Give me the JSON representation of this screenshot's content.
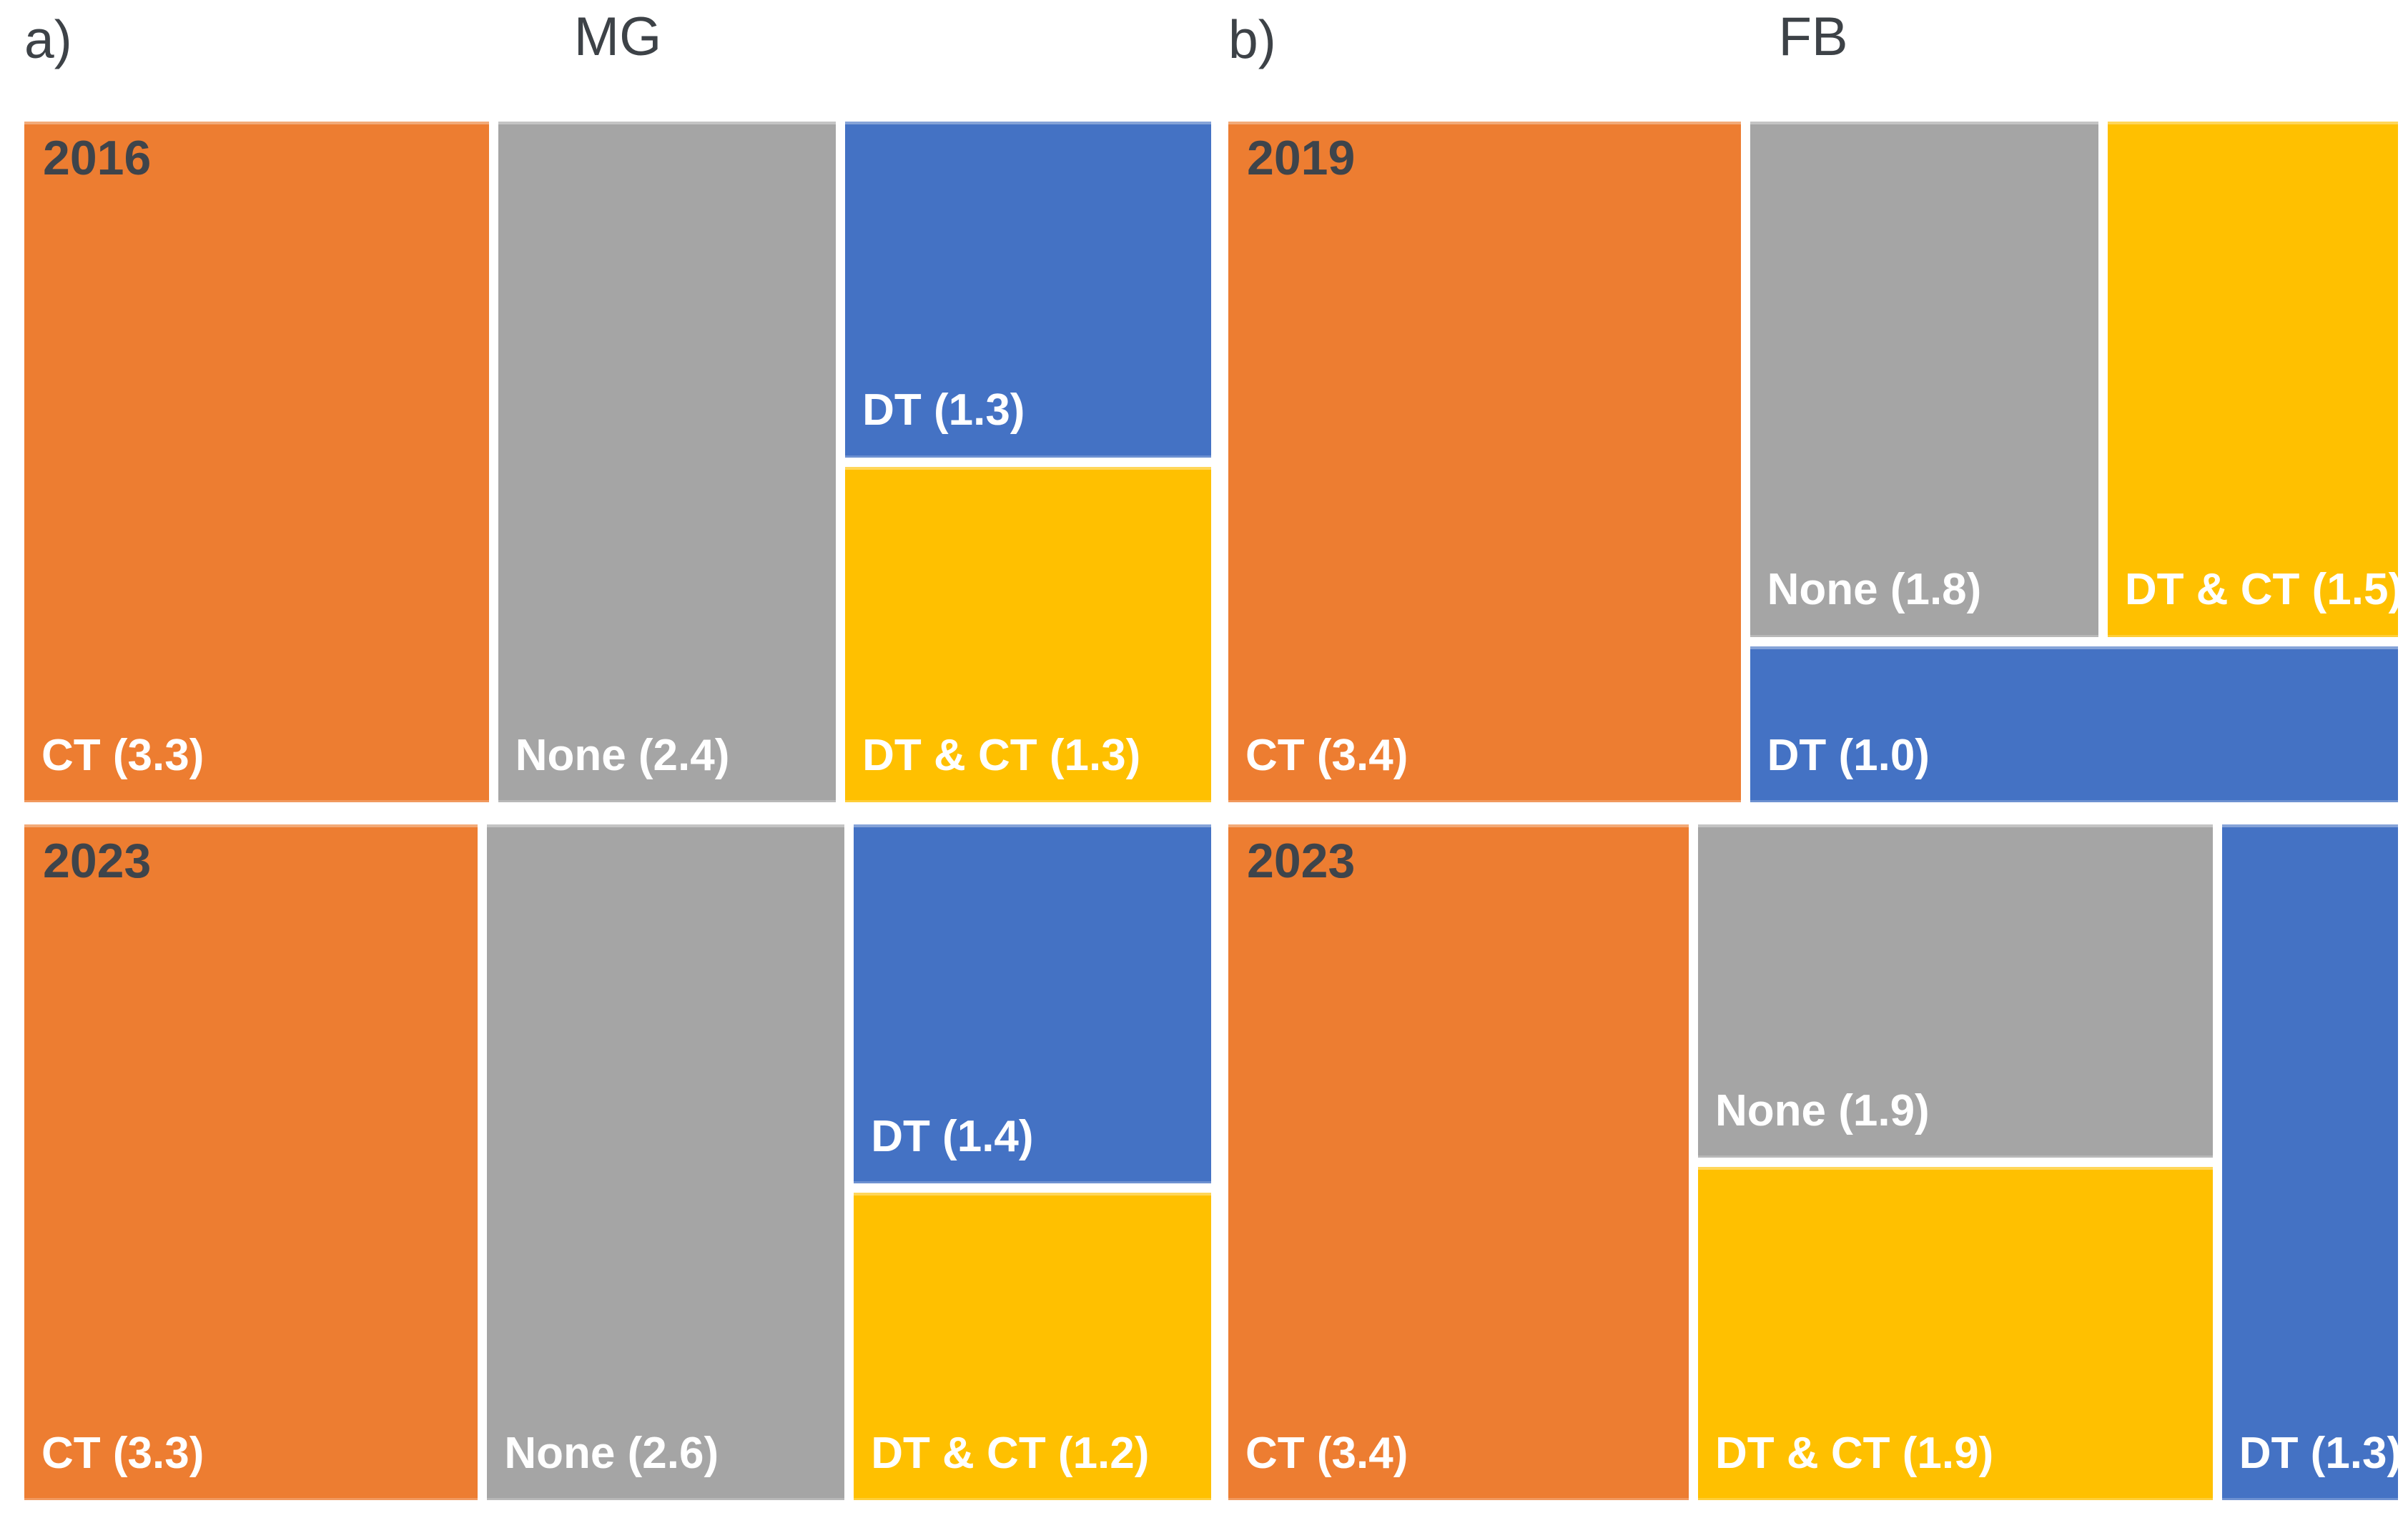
{
  "header": {
    "panel_a_label": "a)",
    "panel_a_title": "MG",
    "panel_b_label": "b)",
    "panel_b_title": "FB"
  },
  "colors": {
    "CT": "#ED7D31",
    "None": "#A5A5A5",
    "DT": "#4472C4",
    "DT & CT": "#FFC000",
    "rect_label_text": "#FFFFFF",
    "year_label_text": "#3E444B",
    "title_text": "#3D4247",
    "background": "#FFFFFF"
  },
  "chart_data": [
    {
      "type": "treemap",
      "panel": "a",
      "panel_title": "MG",
      "year": "2016",
      "items": [
        {
          "label": "CT",
          "value": 3.3
        },
        {
          "label": "None",
          "value": 2.4
        },
        {
          "label": "DT",
          "value": 1.3
        },
        {
          "label": "DT & CT",
          "value": 1.3
        }
      ],
      "layout": {
        "dir": "row",
        "children": [
          {
            "item": "CT"
          },
          {
            "item": "None"
          },
          {
            "dir": "column",
            "children": [
              {
                "item": "DT"
              },
              {
                "item": "DT & CT"
              }
            ]
          }
        ]
      }
    },
    {
      "type": "treemap",
      "panel": "a",
      "panel_title": "MG",
      "year": "2023",
      "items": [
        {
          "label": "CT",
          "value": 3.3
        },
        {
          "label": "None",
          "value": 2.6
        },
        {
          "label": "DT",
          "value": 1.4
        },
        {
          "label": "DT & CT",
          "value": 1.2
        }
      ],
      "layout": {
        "dir": "row",
        "children": [
          {
            "item": "CT"
          },
          {
            "item": "None"
          },
          {
            "dir": "column",
            "children": [
              {
                "item": "DT"
              },
              {
                "item": "DT & CT"
              }
            ]
          }
        ]
      }
    },
    {
      "type": "treemap",
      "panel": "b",
      "panel_title": "FB",
      "year": "2019",
      "items": [
        {
          "label": "CT",
          "value": 3.4
        },
        {
          "label": "None",
          "value": 1.8
        },
        {
          "label": "DT & CT",
          "value": 1.5
        },
        {
          "label": "DT",
          "value": 1.0
        }
      ],
      "layout": {
        "dir": "row",
        "children": [
          {
            "item": "CT"
          },
          {
            "dir": "column",
            "children": [
              {
                "dir": "row",
                "children": [
                  {
                    "item": "None"
                  },
                  {
                    "item": "DT & CT"
                  }
                ]
              },
              {
                "item": "DT"
              }
            ]
          }
        ]
      }
    },
    {
      "type": "treemap",
      "panel": "b",
      "panel_title": "FB",
      "year": "2023",
      "items": [
        {
          "label": "CT",
          "value": 3.4
        },
        {
          "label": "None",
          "value": 1.9
        },
        {
          "label": "DT & CT",
          "value": 1.9
        },
        {
          "label": "DT",
          "value": 1.3
        }
      ],
      "layout": {
        "dir": "row",
        "children": [
          {
            "item": "CT"
          },
          {
            "dir": "column",
            "children": [
              {
                "item": "None"
              },
              {
                "item": "DT & CT"
              }
            ]
          },
          {
            "item": "DT"
          }
        ]
      }
    }
  ],
  "label_format": "NAME (VALUE)"
}
